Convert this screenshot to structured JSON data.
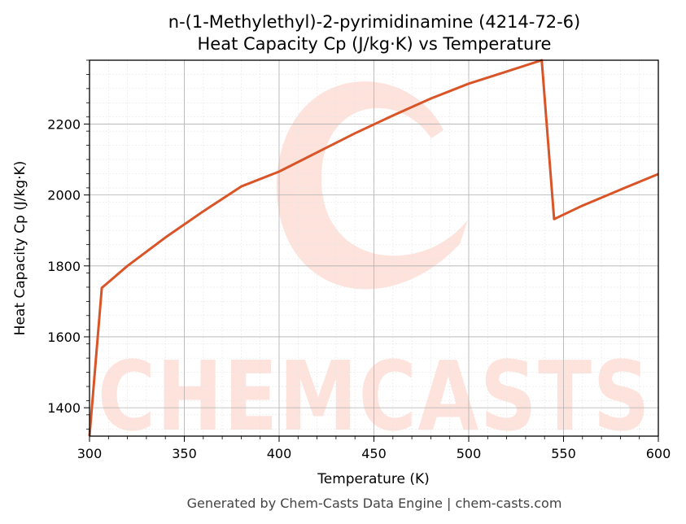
{
  "chart_data": {
    "type": "line",
    "title": "n-(1-Methylethyl)-2-pyrimidinamine (4214-72-6)",
    "subtitle": "Heat Capacity Cp (J/kg·K) vs Temperature",
    "xlabel": "Temperature (K)",
    "ylabel": "Heat Capacity Cp (J/kg·K)",
    "xlim": [
      300,
      600
    ],
    "ylim": [
      1320,
      2380
    ],
    "x_ticks": [
      300,
      350,
      400,
      450,
      500,
      550,
      600
    ],
    "y_ticks": [
      1400,
      1600,
      1800,
      2000,
      2200
    ],
    "grid": true,
    "line_color": "#d95426",
    "series": [
      {
        "x": [
          300,
          306.5,
          320,
          340,
          360,
          380,
          400,
          420,
          440,
          460,
          480,
          500,
          520,
          538.5,
          545,
          560,
          580,
          600
        ],
        "values": [
          1320,
          1738,
          1800,
          1880,
          1954,
          2024,
          2066,
          2120,
          2174,
          2224,
          2272,
          2314,
          2348,
          2380,
          1932,
          1970,
          2015,
          2059
        ]
      }
    ]
  },
  "watermark": {
    "text": "CHEMCASTS",
    "color": "#fde3dc"
  },
  "footer": "Generated by Chem-Casts Data Engine | chem-casts.com"
}
